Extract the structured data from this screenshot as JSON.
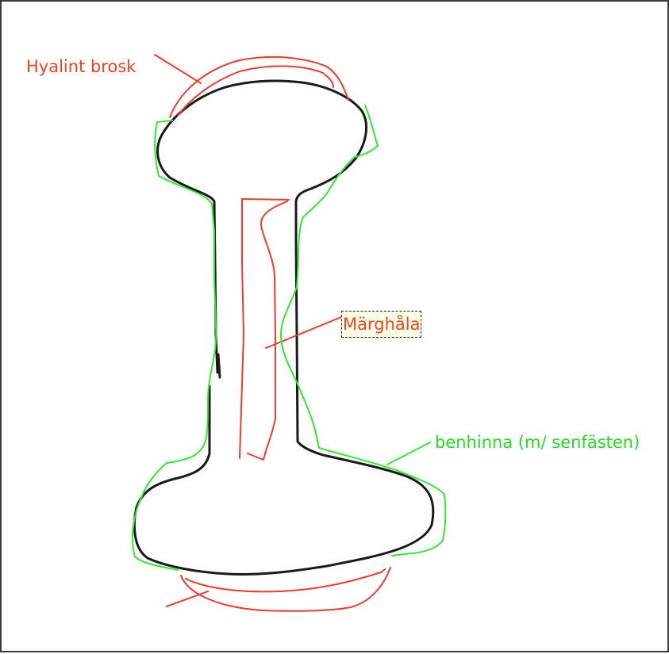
{
  "diagram": {
    "labels": {
      "hyaline_cartilage": "Hyalint brosk",
      "marrow_cavity": "Märghåla",
      "periosteum": "benhinna (m/ senfästen)"
    },
    "colors": {
      "bone_outline": "#1a1a1a",
      "cartilage": "#ee3a2e",
      "marrow": "#ee3a2e",
      "periosteum": "#33e633",
      "label_red": "#ee4422",
      "label_green": "#22dd22",
      "background": "#ffffff",
      "frame": "#3a3a3a"
    }
  }
}
